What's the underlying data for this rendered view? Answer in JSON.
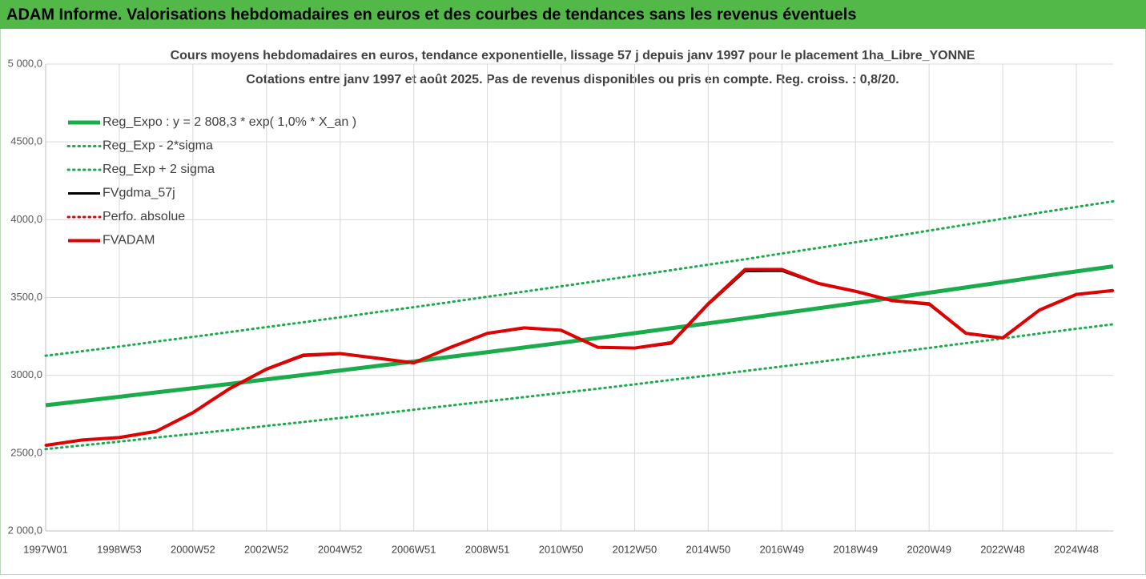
{
  "header": {
    "title": "ADAM Informe. Valorisations hebdomadaires en euros et des courbes de tendances sans les revenus éventuels"
  },
  "chart_data": {
    "type": "line",
    "title": "Cours moyens hebdomadaires en euros, tendance exponentielle, lissage 57 j depuis janv 1997 pour le placement 1ha_Libre_YONNE",
    "subtitle": "Cotations entre janv 1997 et août 2025. Pas de revenus disponibles ou pris en compte. Reg. croiss. : 0,8/20.",
    "categories": [
      "1997W01",
      null,
      "1998W53",
      null,
      "2000W52",
      null,
      "2002W52",
      null,
      "2004W52",
      null,
      "2006W51",
      null,
      "2008W51",
      null,
      "2010W50",
      null,
      "2012W50",
      null,
      "2014W50",
      null,
      "2016W49",
      null,
      "2018W49",
      null,
      "2020W49",
      null,
      "2022W48",
      null,
      "2024W48",
      null
    ],
    "ylim": [
      2000,
      5000
    ],
    "yticks": [
      {
        "value": 2000,
        "label": "2 000,0"
      },
      {
        "value": 2500,
        "label": "2500,0"
      },
      {
        "value": 3000,
        "label": "3000,0"
      },
      {
        "value": 3500,
        "label": "3500,0"
      },
      {
        "value": 4000,
        "label": "4000,0"
      },
      {
        "value": 4500,
        "label": "4500,0"
      },
      {
        "value": 5000,
        "label": "5 000,0"
      }
    ],
    "grid": true,
    "legend": "top-left",
    "series": [
      {
        "name": "Reg_Expo : y = 2 808,3 * exp( 1,0% *  X_an )",
        "color": "#1aab4b",
        "style": "solid",
        "values": [
          2808,
          2835,
          2862,
          2890,
          2917,
          2945,
          2974,
          3002,
          3031,
          3060,
          3089,
          3119,
          3149,
          3179,
          3209,
          3240,
          3271,
          3303,
          3334,
          3366,
          3399,
          3431,
          3464,
          3497,
          3531,
          3565,
          3599,
          3634,
          3668,
          3700
        ]
      },
      {
        "name": "Reg_Exp - 2*sigma",
        "color": "#1aab4b",
        "style": "dotted",
        "values": [
          2526,
          2550,
          2574,
          2600,
          2624,
          2649,
          2675,
          2700,
          2726,
          2752,
          2779,
          2806,
          2833,
          2860,
          2887,
          2914,
          2942,
          2971,
          2999,
          3028,
          3057,
          3086,
          3116,
          3146,
          3176,
          3207,
          3237,
          3269,
          3299,
          3328
        ]
      },
      {
        "name": "Reg_Exp + 2 sigma",
        "color": "#1aab4b",
        "style": "dotted",
        "values": [
          3126,
          3155,
          3185,
          3217,
          3247,
          3278,
          3310,
          3341,
          3373,
          3406,
          3438,
          3471,
          3505,
          3538,
          3572,
          3606,
          3641,
          3676,
          3711,
          3746,
          3783,
          3819,
          3855,
          3892,
          3930,
          3968,
          4006,
          4045,
          4082,
          4118
        ]
      },
      {
        "name": "FVgdma_57j",
        "color": "#000000",
        "style": "solid",
        "values": [
          2550,
          2583,
          2602,
          2642,
          2760,
          2912,
          3038,
          3125,
          3138,
          3112,
          3080,
          3178,
          3268,
          3303,
          3288,
          3178,
          3175,
          3205,
          3455,
          3670,
          3672,
          3588,
          3538,
          3478,
          3455,
          3268,
          3238,
          3418,
          3518,
          3545
        ]
      },
      {
        "name": "Perfo. absolue",
        "color": "#e00000",
        "style": "dotted",
        "values": [
          2550,
          2585,
          2600,
          2640,
          2760,
          2915,
          3040,
          3130,
          3140,
          3110,
          3080,
          3180,
          3270,
          3305,
          3290,
          3180,
          3175,
          3210,
          3460,
          3680,
          3680,
          3590,
          3540,
          3480,
          3460,
          3270,
          3240,
          3420,
          3520,
          3545
        ]
      },
      {
        "name": "FVADAM",
        "color": "#e00000",
        "style": "solid",
        "values": [
          2550,
          2585,
          2600,
          2640,
          2760,
          2915,
          3040,
          3130,
          3140,
          3110,
          3080,
          3180,
          3270,
          3305,
          3290,
          3180,
          3175,
          3210,
          3460,
          3680,
          3680,
          3590,
          3540,
          3480,
          3460,
          3270,
          3240,
          3420,
          3520,
          3545
        ]
      }
    ]
  }
}
